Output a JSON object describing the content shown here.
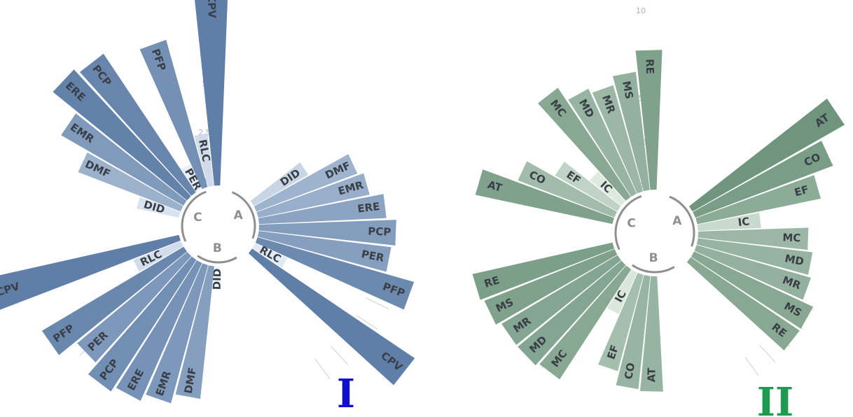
{
  "chart_data": [
    {
      "type": "bar",
      "subtype": "circular-barplot",
      "panel_label": "I",
      "panel_label_color": "#1010cc",
      "radial_ticks": [
        "0",
        "2.5",
        "5",
        "7.5",
        "10"
      ],
      "ylim": [
        0,
        10
      ],
      "palette": {
        "low": "#eef5fc",
        "high": "#5f7fa8",
        "label_color": "#3a3f47"
      },
      "groups": [
        {
          "name": "A",
          "categories": [
            "DID",
            "DMF",
            "EMR",
            "ERE",
            "PCP",
            "PER",
            "PFP",
            "RLC",
            "CPV"
          ],
          "values": [
            3.2,
            5.5,
            5.8,
            6.5,
            7.0,
            6.8,
            8.3,
            1.8,
            10.0
          ]
        },
        {
          "name": "B",
          "categories": [
            "DID",
            "DMF",
            "EMR",
            "ERE",
            "PCP",
            "PER",
            "PFP",
            "RLC",
            "CPV"
          ],
          "values": [
            1.0,
            6.8,
            7.3,
            7.7,
            8.0,
            7.3,
            8.4,
            2.6,
            10.0
          ]
        },
        {
          "name": "C",
          "categories": [
            "DID",
            "DMF",
            "EMR",
            "ERE",
            "PCP",
            "PER",
            "PFP",
            "RLC",
            "CPV"
          ],
          "values": [
            2.2,
            5.6,
            7.2,
            8.8,
            8.5,
            1.4,
            7.8,
            2.7,
            10.0
          ]
        }
      ]
    },
    {
      "type": "bar",
      "subtype": "circular-barplot",
      "panel_label": "II",
      "panel_label_color": "#1f9a50",
      "radial_ticks": [
        "0",
        "2.5",
        "5",
        "7.5",
        "10"
      ],
      "ylim": [
        0,
        10
      ],
      "palette": {
        "low": "#f3faf3",
        "high": "#6f957e",
        "label_color": "#3a3f47"
      },
      "groups": [
        {
          "name": "A",
          "categories": [
            "AT",
            "CO",
            "EF",
            "IC",
            "MC",
            "MD",
            "MR",
            "MS",
            "RE"
          ],
          "values": [
            10.0,
            8.4,
            7.2,
            3.6,
            6.3,
            6.6,
            6.8,
            7.5,
            7.5
          ]
        },
        {
          "name": "B",
          "categories": [
            "AT",
            "CO",
            "EF",
            "IC",
            "MC",
            "MD",
            "MR",
            "MS",
            "RE"
          ],
          "values": [
            6.6,
            6.5,
            5.7,
            2.6,
            7.5,
            7.7,
            7.7,
            8.0,
            8.2
          ]
        },
        {
          "name": "C",
          "categories": [
            "AT",
            "CO",
            "EF",
            "IC",
            "MC",
            "MD",
            "MR",
            "MS",
            "RE"
          ],
          "values": [
            8.0,
            5.9,
            4.1,
            2.3,
            7.5,
            6.6,
            6.3,
            6.8,
            8.0
          ]
        }
      ]
    }
  ]
}
